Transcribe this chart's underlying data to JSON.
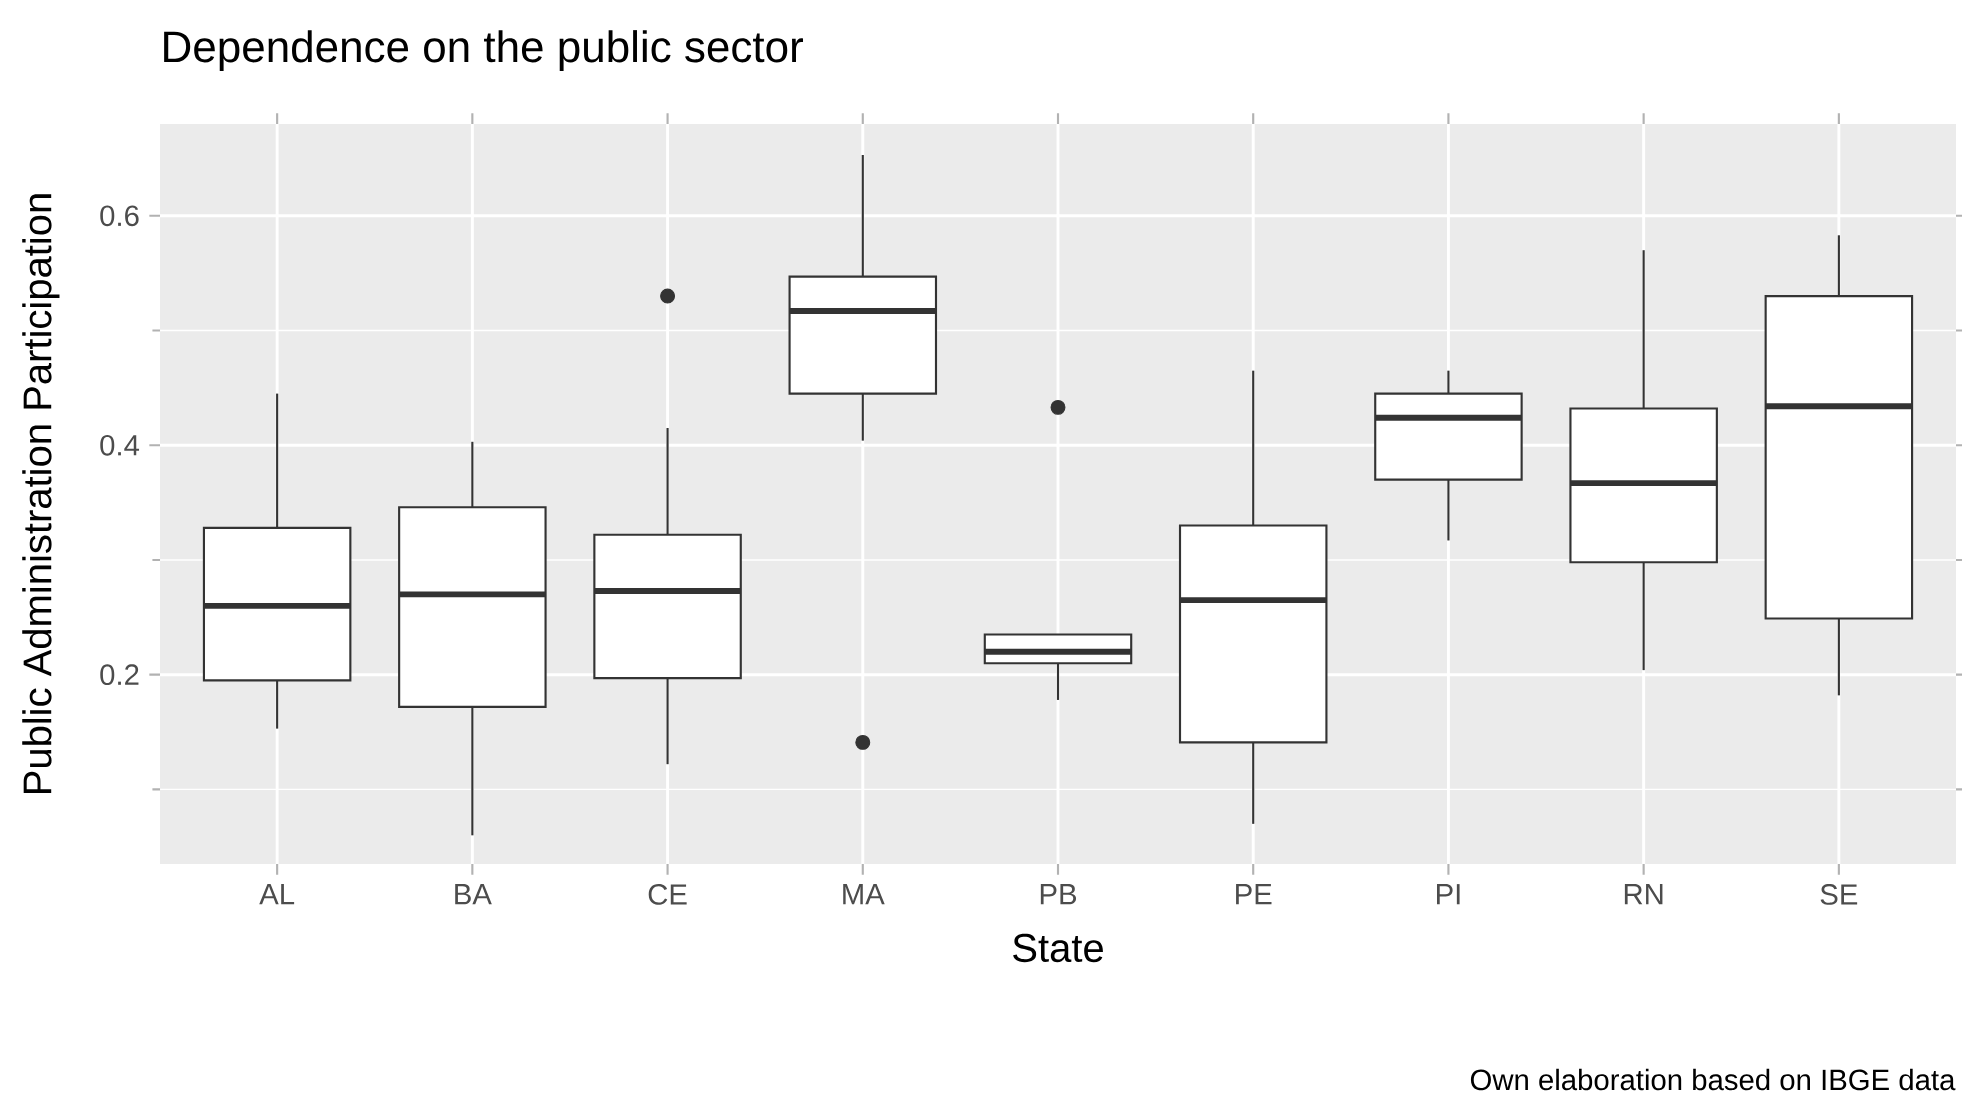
{
  "chart_data": {
    "type": "box",
    "title": "Dependence on the public sector",
    "xlabel": "State",
    "ylabel": "Public Administration Participation",
    "annotations": [
      "Own elaboration based on IBGE data"
    ],
    "categories": [
      "AL",
      "BA",
      "CE",
      "MA",
      "PB",
      "PE",
      "PI",
      "RN",
      "SE"
    ],
    "boxes": [
      {
        "low": 0.153,
        "q1": 0.195,
        "median": 0.26,
        "q3": 0.328,
        "high": 0.445
      },
      {
        "low": 0.06,
        "q1": 0.172,
        "median": 0.27,
        "q3": 0.346,
        "high": 0.403
      },
      {
        "low": 0.122,
        "q1": 0.197,
        "median": 0.273,
        "q3": 0.322,
        "high": 0.415,
        "outliers": [
          0.53
        ]
      },
      {
        "low": 0.404,
        "q1": 0.445,
        "median": 0.517,
        "q3": 0.547,
        "high": 0.653,
        "outliers": [
          0.141
        ]
      },
      {
        "low": 0.178,
        "q1": 0.21,
        "median": 0.22,
        "q3": 0.235,
        "high": 0.235,
        "outliers": [
          0.433
        ]
      },
      {
        "low": 0.07,
        "q1": 0.141,
        "median": 0.265,
        "q3": 0.33,
        "high": 0.465
      },
      {
        "low": 0.317,
        "q1": 0.37,
        "median": 0.424,
        "q3": 0.445,
        "high": 0.465
      },
      {
        "low": 0.204,
        "q1": 0.298,
        "median": 0.367,
        "q3": 0.432,
        "high": 0.57
      },
      {
        "low": 0.182,
        "q1": 0.249,
        "median": 0.434,
        "q3": 0.53,
        "high": 0.583
      }
    ],
    "color": "#ffffff",
    "ylim": [
      0.035,
      0.68
    ],
    "yticks": [
      0.2,
      0.4,
      0.6
    ],
    "grid": true
  }
}
